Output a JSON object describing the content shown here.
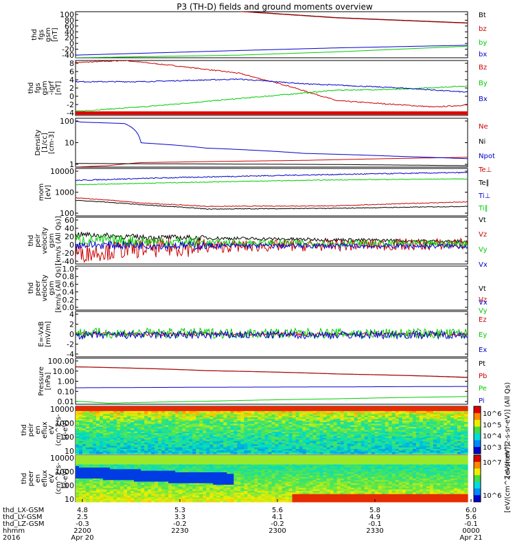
{
  "title": "P3 (TH-D) fields and ground moments overview",
  "chart_data": [
    {
      "type": "line",
      "ylabel": [
        "thd",
        "fgs",
        "gsm",
        "[nT]"
      ],
      "yticks": [
        "100",
        "80",
        "60",
        "40",
        "20",
        "0",
        "-20",
        "-40"
      ],
      "ylim": [
        -40,
        100
      ],
      "series": [
        {
          "name": "Bt",
          "color": "#000000",
          "x": [
            4.8,
            5.25,
            5.6,
            6.0
          ],
          "y": [
            130,
            105,
            82,
            66
          ]
        },
        {
          "name": "bz",
          "color": "#cc0000",
          "x": [
            4.8,
            5.25,
            5.6,
            6.0
          ],
          "y": [
            128,
            104,
            81,
            65
          ]
        },
        {
          "name": "by",
          "color": "#00cc00",
          "x": [
            4.8,
            5.3,
            5.6,
            6.0
          ],
          "y": [
            -40,
            -32,
            -22,
            -5
          ]
        },
        {
          "name": "bx",
          "color": "#0000cc",
          "x": [
            4.8,
            5.3,
            5.6,
            6.0
          ],
          "y": [
            -32,
            -18,
            -10,
            -2
          ]
        }
      ]
    },
    {
      "type": "line",
      "ylabel": [
        "thd",
        "fgs",
        "gsm",
        "-igrf",
        "[nT]"
      ],
      "yticks": [
        "8",
        "6",
        "4",
        "2",
        "0",
        "-2",
        "-4"
      ],
      "ylim": [
        -5,
        8
      ],
      "series": [
        {
          "name": "Bz",
          "color": "#cc0000",
          "x": [
            4.8,
            4.95,
            5.1,
            5.3,
            5.45,
            5.6,
            5.8,
            5.9,
            6.0
          ],
          "y": [
            7.5,
            8.0,
            6.8,
            5.0,
            2.0,
            -1.5,
            -2.5,
            -3.0,
            -2.5
          ]
        },
        {
          "name": "By",
          "color": "#00cc00",
          "x": [
            4.8,
            5.0,
            5.3,
            5.6,
            5.8,
            6.0
          ],
          "y": [
            -4.0,
            -3.0,
            -1.0,
            1.0,
            1.2,
            2.0
          ]
        },
        {
          "name": "Bx",
          "color": "#0000cc",
          "x": [
            4.8,
            5.0,
            5.3,
            5.5,
            5.8,
            6.0
          ],
          "y": [
            3.0,
            3.0,
            3.6,
            2.5,
            1.5,
            0.5
          ]
        }
      ]
    },
    {
      "type": "line",
      "scale": "log",
      "ylabel": [
        "Density",
        "[1/cc]",
        "[cm-3]"
      ],
      "yticks": [
        "100",
        "10",
        "1"
      ],
      "ylim": [
        0.5,
        300
      ],
      "series": [
        {
          "name": "Ne",
          "color": "#cc0000",
          "x": [
            4.8,
            4.9,
            5.0,
            5.5,
            6.0
          ],
          "y": [
            0.5,
            0.6,
            0.9,
            1.2,
            1.8
          ]
        },
        {
          "name": "Ni",
          "color": "#000000",
          "x": [
            4.8,
            5.2,
            5.6,
            6.0
          ],
          "y": [
            0.8,
            0.75,
            0.7,
            0.6
          ]
        },
        {
          "name": "Npot",
          "color": "#0000cc",
          "x": [
            4.8,
            4.82,
            4.95,
            5.0,
            5.2,
            5.5,
            5.8,
            6.0
          ],
          "y": [
            200,
            180,
            150,
            12,
            6,
            3,
            2,
            1.5
          ]
        }
      ]
    },
    {
      "type": "line",
      "scale": "log",
      "ylabel": [
        "mom",
        "[eV]"
      ],
      "yticks": [
        "10000",
        "1000",
        "100"
      ],
      "ylim": [
        50,
        12000
      ],
      "series": [
        {
          "name": "Te⊥",
          "color": "#cc0000",
          "x": [
            4.8,
            5.0,
            5.2,
            5.6,
            6.0
          ],
          "y": [
            400,
            220,
            150,
            160,
            250
          ]
        },
        {
          "name": "Te∥",
          "color": "#000000",
          "x": [
            4.8,
            5.0,
            5.2,
            5.6,
            6.0
          ],
          "y": [
            300,
            180,
            110,
            120,
            150
          ]
        },
        {
          "name": "Ti⊥",
          "color": "#0000cc",
          "x": [
            4.8,
            5.2,
            5.6,
            6.0
          ],
          "y": [
            3000,
            4500,
            6000,
            7500
          ]
        },
        {
          "name": "Ti∥",
          "color": "#00cc00",
          "x": [
            4.8,
            5.2,
            5.6,
            6.0
          ],
          "y": [
            1800,
            2500,
            3200,
            3600
          ]
        }
      ]
    },
    {
      "type": "line",
      "ylabel": [
        "thd",
        "peir",
        "velocity",
        "gsm",
        "[km/s (All Qs)]"
      ],
      "yticks": [
        "60",
        "40",
        "20",
        "0",
        "-20",
        "-40"
      ],
      "ylim": [
        -45,
        65
      ],
      "series": [
        {
          "name": "Vt",
          "color": "#000000",
          "x": [
            4.8,
            5.0,
            5.4,
            6.0
          ],
          "y": [
            25,
            18,
            14,
            8
          ]
        },
        {
          "name": "Vz",
          "color": "#cc0000",
          "x": [
            4.8,
            5.0,
            5.4,
            6.0
          ],
          "y": [
            -20,
            -8,
            -2,
            2
          ]
        },
        {
          "name": "Vy",
          "color": "#00cc00",
          "x": [
            4.8,
            5.2,
            6.0
          ],
          "y": [
            12,
            5,
            2
          ]
        },
        {
          "name": "Vx",
          "color": "#0000cc",
          "x": [
            4.8,
            5.2,
            6.0
          ],
          "y": [
            0,
            -2,
            -3
          ]
        }
      ]
    },
    {
      "type": "line",
      "ylabel": [
        "thd",
        "peer",
        "velocity",
        "gsm",
        "[km/s (All Qs)]"
      ],
      "yticks": [
        "1.0",
        "0.8",
        "0.6",
        "0.4",
        "0.2",
        "0.0"
      ],
      "ylim": [
        0,
        1
      ],
      "series": [
        {
          "name": "Vt",
          "color": "#000000"
        },
        {
          "name": "Vz",
          "color": "#cc0000"
        },
        {
          "name": "Vy",
          "color": "#00cc00"
        },
        {
          "name": "Vx",
          "color": "#0000cc"
        }
      ]
    },
    {
      "type": "line",
      "ylabel": [
        "E=-VxB",
        "[mV/m]"
      ],
      "yticks": [
        "4",
        "2",
        "0",
        "-2",
        "-4"
      ],
      "ylim": [
        -4,
        4
      ],
      "series": [
        {
          "name": "Ez",
          "color": "#cc0000",
          "x": [
            4.8,
            6.0
          ],
          "y": [
            0,
            0
          ]
        },
        {
          "name": "Ey",
          "color": "#00cc00",
          "x": [
            4.8,
            6.0
          ],
          "y": [
            0.2,
            0.1
          ]
        },
        {
          "name": "Ex",
          "color": "#0000cc",
          "x": [
            4.8,
            6.0
          ],
          "y": [
            -0.2,
            -0.1
          ]
        }
      ]
    },
    {
      "type": "line",
      "scale": "log",
      "ylabel": [
        "Pressure",
        "[nPa]"
      ],
      "yticks": [
        "100.00",
        "10.00",
        "1.00",
        "0.10",
        "0.01"
      ],
      "ylim": [
        0.008,
        120
      ],
      "series": [
        {
          "name": "Pt",
          "color": "#000000",
          "x": [
            4.8,
            5.2,
            5.6,
            6.0
          ],
          "y": [
            20,
            9,
            4.5,
            2.2
          ]
        },
        {
          "name": "Pb",
          "color": "#cc0000",
          "x": [
            4.8,
            5.2,
            5.6,
            6.0
          ],
          "y": [
            19.5,
            8.8,
            4.4,
            2.1
          ]
        },
        {
          "name": "Pe",
          "color": "#00cc00",
          "x": [
            4.8,
            4.9,
            5.2,
            5.6,
            6.0
          ],
          "y": [
            0.015,
            0.01,
            0.015,
            0.025,
            0.04
          ]
        },
        {
          "name": "Pi",
          "color": "#0000cc",
          "x": [
            4.8,
            5.2,
            5.6,
            6.0
          ],
          "y": [
            0.25,
            0.28,
            0.3,
            0.33
          ]
        }
      ]
    },
    {
      "type": "heatmap",
      "ylabel": [
        "thd",
        "peir",
        "en",
        "eflux",
        "eV",
        "(cm^2-s-",
        "sr-eV)"
      ],
      "yticks": [
        "10000",
        "1000",
        "100",
        "10"
      ],
      "colorbar_title": "[eV/(cm^2-s-sr-eV)] (All Qs)",
      "colorbar_ticks": [
        "10^6",
        "10^5",
        "10^4",
        "10^3"
      ]
    },
    {
      "type": "heatmap",
      "ylabel": [
        "thd",
        "peer",
        "en",
        "eflux",
        "eV",
        "(cm^2-s-",
        "sr-eV)"
      ],
      "yticks": [
        "10000",
        "1000",
        "100",
        "10"
      ],
      "colorbar_title": "[eV/(cm^2-s-sr-eV)]",
      "colorbar_ticks": [
        "10^7",
        "10^6"
      ]
    }
  ],
  "x_axis": {
    "xlim": [
      4.8,
      6.0
    ],
    "rows": [
      {
        "label": "thd_LX-GSM",
        "values": [
          "4.8",
          "5.3",
          "5.6",
          "5.8",
          "6.0"
        ]
      },
      {
        "label": "thd_LY-GSM",
        "values": [
          "2.5",
          "3.3",
          "4.1",
          "4.9",
          "5.6"
        ]
      },
      {
        "label": "thd_LZ-GSM",
        "values": [
          "-0.3",
          "-0.2",
          "-0.2",
          "-0.1",
          "-0.1"
        ]
      },
      {
        "label": "hhmm",
        "values": [
          "2200",
          "2230",
          "2300",
          "2330",
          "0000"
        ]
      },
      {
        "label": "2016",
        "values": [
          "Apr 20",
          "",
          "",
          "",
          "Apr 21"
        ]
      }
    ]
  }
}
